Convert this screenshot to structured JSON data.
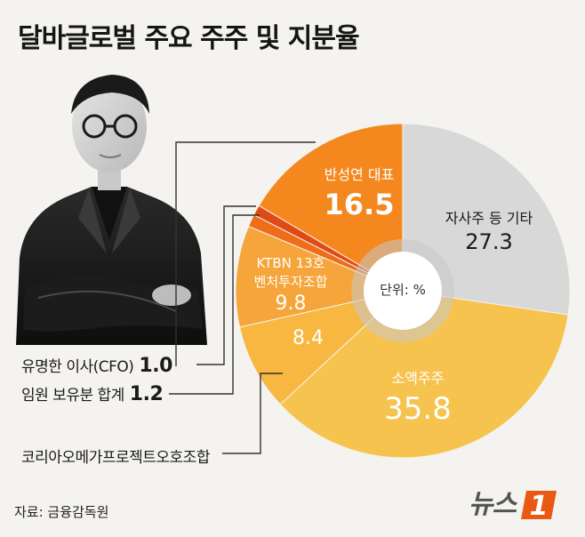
{
  "title": "달바글로벌 주요 주주 및 지분율",
  "chart_data": {
    "type": "pie",
    "unit_label": "단위: %",
    "slices": [
      {
        "label": "반성연 대표",
        "value": 16.5,
        "color": "#f4881f"
      },
      {
        "label": "자사주 등 기타",
        "value": 27.3,
        "color": "#d8d8d8"
      },
      {
        "label": "소액주주",
        "value": 35.8,
        "color": "#f6c34f"
      },
      {
        "label": "코리아오메가프로젝트오호조합",
        "value": 8.4,
        "color": "#f7b740"
      },
      {
        "label": "KTBN 13호 벤처투자조합",
        "value": 9.8,
        "color": "#f6a53a"
      },
      {
        "label": "임원 보유분 합계",
        "value": 1.2,
        "color": "#ee6d18"
      },
      {
        "label": "유명한 이사(CFO)",
        "value": 1.0,
        "color": "#e04a14"
      }
    ]
  },
  "labels": {
    "ban_name": "반성연 대표",
    "ban_value": "16.5",
    "etc_name": "자사주 등 기타",
    "etc_value": "27.3",
    "minor_name": "소액주주",
    "minor_value": "35.8",
    "ktbn_name_line1": "KTBN 13호",
    "ktbn_name_line2": "벤처투자조합",
    "ktbn_value": "9.8",
    "korea_value": "8.4",
    "korea_name": "코리아오메가프로젝트오호조합",
    "cfo_name": "유명한 이사(CFO)",
    "cfo_value": "1.0",
    "exec_name": "임원 보유분 합계",
    "exec_value": "1.2"
  },
  "source": "자료: 금융감독원",
  "logo": {
    "text": "뉴스",
    "number": "1",
    "badge_color": "#e85a14"
  }
}
